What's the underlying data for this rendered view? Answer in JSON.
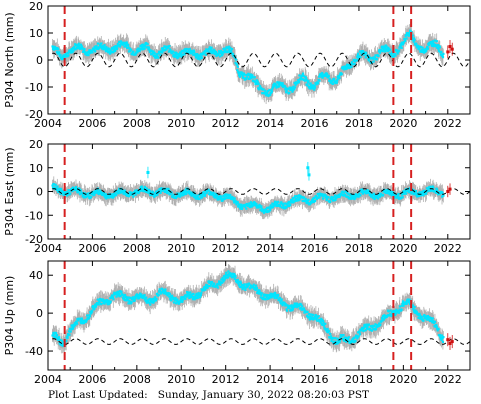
{
  "chart_data": [
    {
      "type": "scatter",
      "ylabel": "P304 North (mm)",
      "xlim": [
        2004,
        2023
      ],
      "ylim": [
        -20,
        20
      ],
      "xticks": [
        2004,
        2006,
        2008,
        2010,
        2012,
        2014,
        2016,
        2018,
        2020,
        2022
      ],
      "yticks": [
        -20,
        -10,
        0,
        10,
        20
      ],
      "event_lines_x": [
        2004.75,
        2019.55,
        2020.35
      ],
      "series": [
        {
          "role": "observed daily positions",
          "color": "#00e5ff",
          "error_color": "#b0b0b0",
          "x": [
            2004.2,
            2004.6,
            2005.0,
            2005.5,
            2006.0,
            2006.5,
            2007.0,
            2007.5,
            2008.0,
            2008.5,
            2009.0,
            2009.5,
            2010.0,
            2010.5,
            2011.0,
            2011.5,
            2012.0,
            2012.3,
            2012.6,
            2013.0,
            2013.5,
            2014.0,
            2014.5,
            2015.0,
            2015.5,
            2016.0,
            2016.5,
            2017.0,
            2017.5,
            2018.0,
            2018.5,
            2019.0,
            2019.5,
            2020.0,
            2020.3,
            2020.6,
            2021.0,
            2021.5,
            2021.8
          ],
          "y": [
            4,
            2,
            3,
            5,
            3,
            5,
            4,
            6,
            3,
            5,
            2,
            4,
            2,
            3,
            2,
            3,
            4,
            2,
            -4,
            -6,
            -10,
            -12,
            -9,
            -11,
            -6,
            -10,
            -5,
            -8,
            -2,
            2,
            0,
            4,
            2,
            7,
            9,
            6,
            4,
            6,
            3
          ]
        },
        {
          "role": "seasonal model",
          "color": "#000000",
          "style": "dashed",
          "x": [
            2004.2,
            2023
          ],
          "y": [
            0,
            0
          ],
          "amplitude": 2.5
        },
        {
          "role": "recent positions",
          "color": "#d01010",
          "x": [
            2022.0,
            2022.1,
            2022.2
          ],
          "y": [
            3,
            5,
            4
          ]
        }
      ]
    },
    {
      "type": "scatter",
      "ylabel": "P304 East (mm)",
      "xlim": [
        2004,
        2023
      ],
      "ylim": [
        -20,
        20
      ],
      "xticks": [
        2004,
        2006,
        2008,
        2010,
        2012,
        2014,
        2016,
        2018,
        2020,
        2022
      ],
      "yticks": [
        -20,
        -10,
        0,
        10,
        20
      ],
      "event_lines_x": [
        2004.75,
        2019.55,
        2020.35
      ],
      "series": [
        {
          "role": "observed daily positions",
          "color": "#00e5ff",
          "error_color": "#b0b0b0",
          "x": [
            2004.2,
            2005.0,
            2006.0,
            2007.0,
            2008.0,
            2009.0,
            2010.0,
            2011.0,
            2012.0,
            2012.5,
            2013.0,
            2014.0,
            2015.0,
            2016.0,
            2017.0,
            2018.0,
            2019.0,
            2020.0,
            2021.0,
            2021.8
          ],
          "y": [
            1,
            0,
            -1,
            -1,
            0,
            0,
            -1,
            -1,
            -2,
            -5,
            -6,
            -7,
            -4,
            -3,
            -2,
            -1,
            -1,
            -1,
            0,
            0
          ]
        },
        {
          "role": "seasonal model",
          "color": "#000000",
          "style": "dashed",
          "x": [
            2004.2,
            2023
          ],
          "y": [
            0,
            0
          ],
          "amplitude": 1.2
        },
        {
          "role": "outliers",
          "color": "#00e5ff",
          "x": [
            2008.5,
            2015.7,
            2015.75
          ],
          "y": [
            8,
            10,
            7
          ]
        },
        {
          "role": "recent positions",
          "color": "#d01010",
          "x": [
            2022.0,
            2022.1
          ],
          "y": [
            0,
            1
          ]
        }
      ]
    },
    {
      "type": "scatter",
      "ylabel": "P304 Up (mm)",
      "xlim": [
        2004,
        2023
      ],
      "ylim": [
        -60,
        55
      ],
      "xticks": [
        2004,
        2006,
        2008,
        2010,
        2012,
        2014,
        2016,
        2018,
        2020,
        2022
      ],
      "yticks": [
        -40,
        0,
        40
      ],
      "event_lines_x": [
        2004.75,
        2019.55,
        2020.35
      ],
      "series": [
        {
          "role": "observed daily positions",
          "color": "#00e5ff",
          "error_color": "#b0b0b0",
          "x": [
            2004.2,
            2004.7,
            2005.0,
            2005.5,
            2006.0,
            2006.5,
            2007.0,
            2007.5,
            2008.0,
            2008.5,
            2009.0,
            2009.5,
            2010.0,
            2010.5,
            2011.0,
            2011.5,
            2012.0,
            2012.5,
            2013.0,
            2013.5,
            2014.0,
            2014.5,
            2015.0,
            2015.5,
            2016.0,
            2016.5,
            2017.0,
            2017.5,
            2018.0,
            2018.5,
            2019.0,
            2019.5,
            2020.0,
            2020.3,
            2020.6,
            2021.0,
            2021.5,
            2021.8
          ],
          "y": [
            -25,
            -30,
            -18,
            -8,
            5,
            12,
            20,
            15,
            18,
            12,
            22,
            18,
            14,
            18,
            25,
            30,
            40,
            35,
            28,
            22,
            18,
            12,
            6,
            5,
            -5,
            -15,
            -30,
            -28,
            -22,
            -15,
            -8,
            0,
            10,
            8,
            2,
            -5,
            -15,
            -25
          ]
        },
        {
          "role": "seasonal model",
          "color": "#000000",
          "style": "dashed",
          "x": [
            2004.2,
            2023
          ],
          "y": [
            -30,
            -30
          ],
          "amplitude": 3
        },
        {
          "role": "recent positions",
          "color": "#d01010",
          "x": [
            2022.0,
            2022.1,
            2022.2
          ],
          "y": [
            -28,
            -32,
            -30
          ]
        }
      ]
    }
  ],
  "footer": {
    "label": "Plot Last Updated:",
    "value": "Sunday, January 30, 2022 08:20:03 PST"
  },
  "colors": {
    "event_line": "#d62020",
    "data": "#00e5ff",
    "error_bar": "#b0b0b0",
    "model": "#000000",
    "recent": "#d01010"
  }
}
